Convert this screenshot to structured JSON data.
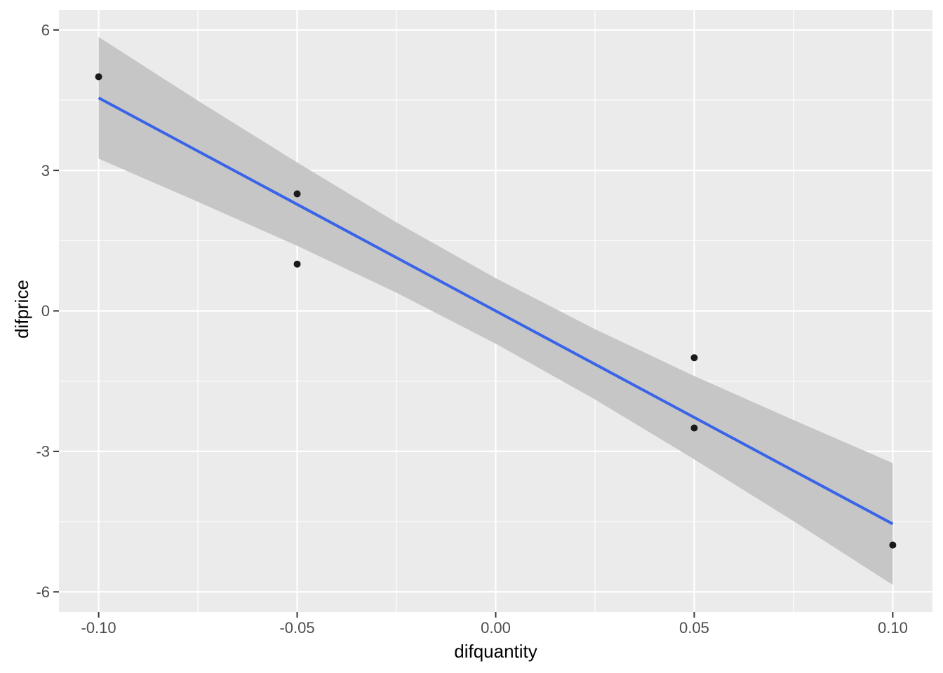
{
  "figure": {
    "background": "#FFFFFF"
  },
  "chart_data": {
    "type": "scatter",
    "title": "",
    "xlabel": "difquantity",
    "ylabel": "difprice",
    "xlim": [
      -0.11,
      0.11
    ],
    "ylim": [
      -6.43,
      6.43
    ],
    "grid": "on",
    "legend": "none",
    "x_major_ticks": [
      -0.1,
      -0.05,
      0.0,
      0.05,
      0.1
    ],
    "x_tick_labels": [
      "-0.10",
      "-0.05",
      "0.00",
      "0.05",
      "0.10"
    ],
    "x_minor_gridlines": [
      -0.075,
      -0.025,
      0.025,
      0.075
    ],
    "y_major_ticks": [
      -6,
      -3,
      0,
      3,
      6
    ],
    "y_tick_labels": [
      "-6",
      "-3",
      "0",
      "3",
      "6"
    ],
    "y_minor_gridlines": [
      -4.5,
      -1.5,
      1.5,
      4.5
    ],
    "points": [
      {
        "x": -0.1,
        "y": 5.0
      },
      {
        "x": -0.05,
        "y": 2.5
      },
      {
        "x": -0.05,
        "y": 1.0
      },
      {
        "x": 0.05,
        "y": -1.0
      },
      {
        "x": 0.05,
        "y": -2.5
      },
      {
        "x": 0.1,
        "y": -5.0
      }
    ],
    "regression_line": {
      "slope": -45.5,
      "intercept": 0,
      "x": [
        -0.1,
        0.1
      ],
      "y": [
        4.55,
        -4.55
      ]
    },
    "confidence_ribbon": {
      "x": [
        -0.1,
        -0.075,
        -0.05,
        -0.025,
        0.0,
        0.025,
        0.05,
        0.075,
        0.1
      ],
      "upper": [
        5.85,
        4.49,
        3.17,
        1.89,
        0.7,
        -0.39,
        -1.39,
        -2.33,
        -3.25
      ],
      "lower": [
        3.25,
        2.33,
        1.39,
        0.39,
        -0.7,
        -1.89,
        -3.17,
        -4.49,
        -5.85
      ]
    },
    "style": {
      "panel_bg": "#EBEBEB",
      "grid_color": "#FFFFFF",
      "ribbon_fill": "#C6C6C6",
      "line_color": "#3964E8",
      "point_color": "#1A1A1A",
      "tick_text_color": "#4D4D4D",
      "tick_mark_color": "#333333",
      "axis_title_color": "#000000"
    }
  }
}
